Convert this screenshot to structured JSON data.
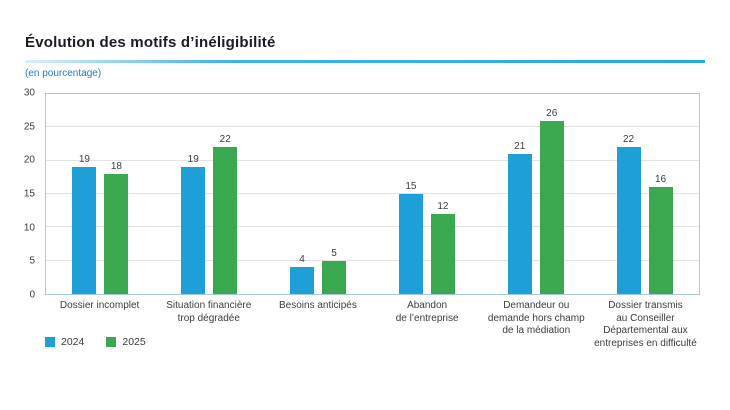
{
  "header": {
    "title": "Évolution des motifs d’inéligibilité",
    "subtitle": "(en pourcentage)"
  },
  "colors": {
    "title_text": "#1b1b26",
    "subtitle_text": "#1e7ec8",
    "title_rule": "#29a8e0",
    "plot_border": "#a6c9e8",
    "gridline": "#e3e3e3",
    "axis_label_text": "#3c3c3c",
    "series_2024": "#1e9fd8",
    "series_2025": "#3aa84f"
  },
  "chart_data": {
    "type": "bar",
    "title": "Évolution des motifs d’inéligibilité",
    "subtitle": "(en pourcentage)",
    "categories": [
      "Dossier incomplet",
      "Situation financière\ntrop dégradée",
      "Besoins anticipés",
      "Abandon\nde l’entreprise",
      "Demandeur ou\ndemande hors champ\nde la médiation",
      "Dossier transmis\nau Conseiller\nDépartemental aux\nentreprises en difficulté"
    ],
    "series": [
      {
        "name": "2024",
        "color": "#1e9fd8",
        "values": [
          19,
          19,
          4,
          15,
          21,
          22
        ]
      },
      {
        "name": "2025",
        "color": "#3aa84f",
        "values": [
          18,
          22,
          5,
          12,
          26,
          16
        ]
      }
    ],
    "xlabel": "",
    "ylabel": "",
    "ylim": [
      0,
      30
    ],
    "yticks": [
      0,
      5,
      10,
      15,
      20,
      25,
      30
    ],
    "grid": true,
    "data_labels": true,
    "legend_position": "bottom-left"
  }
}
